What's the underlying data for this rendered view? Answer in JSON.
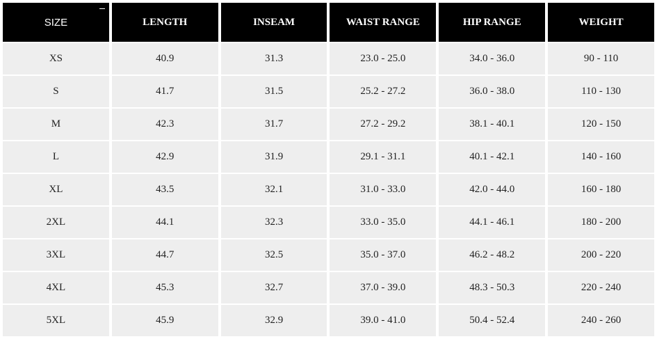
{
  "table": {
    "header": [
      "SIZE",
      "LENGTH",
      "INSEAM",
      "WAIST RANGE",
      "HIP RANGE",
      "WEIGHT"
    ],
    "rows": [
      [
        "XS",
        "40.9",
        "31.3",
        "23.0 - 25.0",
        "34.0 - 36.0",
        "90 - 110"
      ],
      [
        "S",
        "41.7",
        "31.5",
        "25.2 - 27.2",
        "36.0 - 38.0",
        "110 - 130"
      ],
      [
        "M",
        "42.3",
        "31.7",
        "27.2 - 29.2",
        "38.1 - 40.1",
        "120 - 150"
      ],
      [
        "L",
        "42.9",
        "31.9",
        "29.1 - 31.1",
        "40.1 - 42.1",
        "140 - 160"
      ],
      [
        "XL",
        "43.5",
        "32.1",
        "31.0 - 33.0",
        "42.0 - 44.0",
        "160 - 180"
      ],
      [
        "2XL",
        "44.1",
        "32.3",
        "33.0 - 35.0",
        "44.1 - 46.1",
        "180 - 200"
      ],
      [
        "3XL",
        "44.7",
        "32.5",
        "35.0 - 37.0",
        "46.2 - 48.2",
        "200 - 220"
      ],
      [
        "4XL",
        "45.3",
        "32.7",
        "37.0 - 39.0",
        "48.3 - 50.3",
        "220 - 240"
      ],
      [
        "5XL",
        "45.9",
        "32.9",
        "39.0 - 41.0",
        "50.4 - 52.4",
        "240 - 260"
      ]
    ]
  }
}
